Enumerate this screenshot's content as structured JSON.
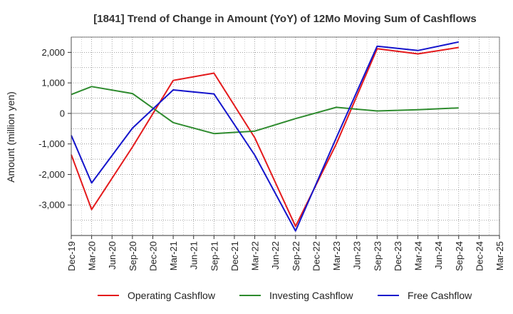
{
  "chart_data": {
    "type": "line",
    "title": "[1841]  Trend of Change in Amount (YoY) of 12Mo Moving Sum of Cashflows",
    "xlabel": "",
    "ylabel": "Amount (million yen)",
    "ylim": [
      -4000,
      2500
    ],
    "yticks": [
      2000,
      1000,
      0,
      -1000,
      -2000,
      -3000
    ],
    "ytick_labels": [
      "2,000",
      "1,000",
      "0",
      "-1,000",
      "-2,000",
      "-3,000"
    ],
    "categories": [
      "Dec-19",
      "Mar-20",
      "Jun-20",
      "Sep-20",
      "Dec-20",
      "Mar-21",
      "Jun-21",
      "Sep-21",
      "Dec-21",
      "Mar-22",
      "Jun-22",
      "Sep-22",
      "Dec-22",
      "Mar-23",
      "Jun-23",
      "Sep-23",
      "Dec-23",
      "Mar-24",
      "Jun-24",
      "Sep-24",
      "Dec-24",
      "Mar-25"
    ],
    "grid": true,
    "legend_position": "bottom",
    "series": [
      {
        "name": "Operating Cashflow",
        "color": "#e41a1c",
        "values": [
          -1350,
          -3150,
          null,
          -1100,
          null,
          1080,
          null,
          1320,
          null,
          -800,
          null,
          -3700,
          null,
          -1000,
          null,
          2120,
          null,
          1950,
          null,
          2160,
          null,
          null
        ]
      },
      {
        "name": "Investing Cashflow",
        "color": "#2e8b2e",
        "values": [
          620,
          880,
          null,
          650,
          null,
          -300,
          null,
          -660,
          null,
          -580,
          null,
          -170,
          null,
          200,
          null,
          80,
          null,
          120,
          null,
          180,
          null,
          null
        ]
      },
      {
        "name": "Free Cashflow",
        "color": "#1515cc",
        "values": [
          -720,
          -2280,
          null,
          -480,
          null,
          770,
          null,
          640,
          null,
          -1370,
          null,
          -3850,
          null,
          -800,
          null,
          2200,
          null,
          2060,
          null,
          2340,
          null,
          null
        ]
      }
    ]
  }
}
